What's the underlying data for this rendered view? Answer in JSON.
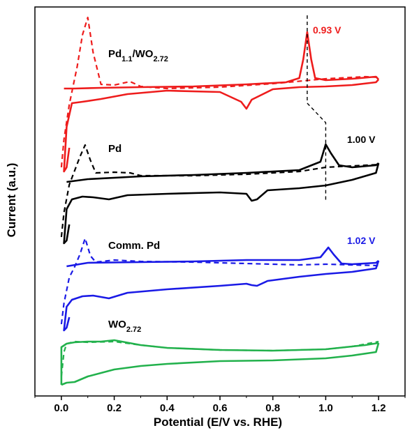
{
  "chart_data": {
    "type": "line",
    "title": "",
    "xlabel": "Potential (E/V vs. RHE)",
    "ylabel": "Current (a.u.)",
    "xlim": [
      -0.1,
      1.3
    ],
    "x_ticks": [
      "0.0",
      "0.2",
      "0.4",
      "0.6",
      "0.8",
      "1.0",
      "1.2"
    ],
    "x_tick_values": [
      0.0,
      0.2,
      0.4,
      0.6,
      0.8,
      1.0,
      1.2
    ],
    "y_ticks_shown": false,
    "legend": "none",
    "grid": false,
    "series": [
      {
        "name": "Pd1.1/WO2.72",
        "label_main": "Pd",
        "label_sub1": "1.1",
        "label_mid": "/WO",
        "label_sub2": "2.72",
        "color": "#ee1c1c",
        "peak_label": "0.93 V",
        "peak_potential": 0.93,
        "solid": {
          "forward": [
            [
              0.01,
              127
            ],
            [
              0.05,
              127
            ],
            [
              0.15,
              126
            ],
            [
              0.3,
              125
            ],
            [
              0.5,
              124
            ],
            [
              0.7,
              121
            ],
            [
              0.85,
              118
            ],
            [
              0.9,
              112
            ],
            [
              0.915,
              85
            ],
            [
              0.93,
              46
            ],
            [
              0.945,
              85
            ],
            [
              0.96,
              112
            ],
            [
              1.0,
              115
            ],
            [
              1.1,
              113
            ],
            [
              1.19,
              110
            ],
            [
              1.2,
              114
            ]
          ],
          "reverse": [
            [
              1.2,
              114
            ],
            [
              1.19,
              118
            ],
            [
              1.1,
              122
            ],
            [
              1.0,
              124
            ],
            [
              0.9,
              125
            ],
            [
              0.8,
              128
            ],
            [
              0.72,
              143
            ],
            [
              0.7,
              156
            ],
            [
              0.68,
              146
            ],
            [
              0.6,
              132
            ],
            [
              0.4,
              130
            ],
            [
              0.25,
              135
            ],
            [
              0.15,
              142
            ],
            [
              0.08,
              146
            ],
            [
              0.04,
              148
            ],
            [
              0.02,
              182
            ],
            [
              0.01,
              246
            ],
            [
              0.02,
              240
            ],
            [
              0.03,
              212
            ]
          ]
        },
        "dashed": [
          [
            0.0,
            240
          ],
          [
            0.01,
            200
          ],
          [
            0.03,
            150
          ],
          [
            0.06,
            95
          ],
          [
            0.08,
            50
          ],
          [
            0.1,
            25
          ],
          [
            0.12,
            75
          ],
          [
            0.15,
            121
          ],
          [
            0.2,
            122
          ],
          [
            0.26,
            117
          ],
          [
            0.3,
            124
          ],
          [
            0.4,
            127
          ],
          [
            0.6,
            125
          ],
          [
            0.8,
            120
          ],
          [
            1.0,
            113
          ],
          [
            1.15,
            110
          ],
          [
            1.2,
            111
          ]
        ]
      },
      {
        "name": "Pd",
        "label_main": "Pd",
        "color": "#000000",
        "peak_label": "1.00 V",
        "peak_potential": 1.0,
        "solid": {
          "forward": [
            [
              0.02,
              261
            ],
            [
              0.1,
              257
            ],
            [
              0.3,
              253
            ],
            [
              0.5,
              251
            ],
            [
              0.7,
              248
            ],
            [
              0.9,
              244
            ],
            [
              0.98,
              232
            ],
            [
              1.0,
              207
            ],
            [
              1.02,
              220
            ],
            [
              1.05,
              237
            ],
            [
              1.1,
              240
            ],
            [
              1.19,
              237
            ],
            [
              1.2,
              234
            ]
          ],
          "reverse": [
            [
              1.2,
              234
            ],
            [
              1.19,
              248
            ],
            [
              1.1,
              258
            ],
            [
              1.0,
              266
            ],
            [
              0.9,
              270
            ],
            [
              0.78,
              273
            ],
            [
              0.74,
              286
            ],
            [
              0.72,
              288
            ],
            [
              0.7,
              278
            ],
            [
              0.6,
              276
            ],
            [
              0.4,
              278
            ],
            [
              0.25,
              280
            ],
            [
              0.18,
              286
            ],
            [
              0.12,
              283
            ],
            [
              0.08,
              282
            ],
            [
              0.04,
              286
            ],
            [
              0.02,
              300
            ],
            [
              0.01,
              349
            ],
            [
              0.02,
              345
            ],
            [
              0.03,
              322
            ]
          ]
        },
        "dashed": [
          [
            0.0,
            340
          ],
          [
            0.01,
            305
          ],
          [
            0.03,
            265
          ],
          [
            0.05,
            245
          ],
          [
            0.07,
            225
          ],
          [
            0.09,
            208
          ],
          [
            0.11,
            230
          ],
          [
            0.13,
            248
          ],
          [
            0.2,
            247
          ],
          [
            0.26,
            248
          ],
          [
            0.3,
            252
          ],
          [
            0.5,
            252
          ],
          [
            0.7,
            250
          ],
          [
            0.9,
            246
          ],
          [
            1.0,
            240
          ],
          [
            1.1,
            238
          ],
          [
            1.2,
            236
          ]
        ]
      },
      {
        "name": "Comm. Pd",
        "label_main": "Comm. Pd",
        "color": "#1a1ae6",
        "peak_label": "1.02 V",
        "peak_potential": 1.02,
        "solid": {
          "forward": [
            [
              0.02,
              382
            ],
            [
              0.1,
              377
            ],
            [
              0.3,
              376
            ],
            [
              0.5,
              375
            ],
            [
              0.7,
              373
            ],
            [
              0.9,
              373
            ],
            [
              0.98,
              369
            ],
            [
              1.01,
              355
            ],
            [
              1.03,
              365
            ],
            [
              1.06,
              378
            ],
            [
              1.1,
              379
            ],
            [
              1.19,
              377
            ],
            [
              1.2,
              374
            ]
          ],
          "reverse": [
            [
              1.2,
              374
            ],
            [
              1.19,
              385
            ],
            [
              1.1,
              390
            ],
            [
              1.0,
              393
            ],
            [
              0.9,
              397
            ],
            [
              0.78,
              403
            ],
            [
              0.74,
              410
            ],
            [
              0.72,
              409
            ],
            [
              0.7,
              407
            ],
            [
              0.6,
              410
            ],
            [
              0.4,
              415
            ],
            [
              0.25,
              420
            ],
            [
              0.18,
              428
            ],
            [
              0.12,
              424
            ],
            [
              0.08,
              425
            ],
            [
              0.04,
              430
            ],
            [
              0.02,
              440
            ],
            [
              0.01,
              474
            ],
            [
              0.02,
              470
            ],
            [
              0.03,
              455
            ]
          ]
        },
        "dashed": [
          [
            0.0,
            465
          ],
          [
            0.01,
            435
          ],
          [
            0.03,
            398
          ],
          [
            0.05,
            383
          ],
          [
            0.07,
            365
          ],
          [
            0.09,
            342
          ],
          [
            0.11,
            367
          ],
          [
            0.13,
            376
          ],
          [
            0.2,
            373
          ],
          [
            0.3,
            375
          ],
          [
            0.5,
            376
          ],
          [
            0.7,
            378
          ],
          [
            0.9,
            380
          ],
          [
            1.0,
            379
          ],
          [
            1.1,
            380
          ],
          [
            1.2,
            381
          ]
        ]
      },
      {
        "name": "WO2.72",
        "label_main": "WO",
        "label_sub1": "2.72",
        "color": "#22b14c",
        "solid": {
          "forward": [
            [
              0.0,
              552
            ],
            [
              0.02,
              549
            ],
            [
              0.05,
              548
            ],
            [
              0.1,
              540
            ],
            [
              0.2,
              530
            ],
            [
              0.3,
              525
            ],
            [
              0.4,
              522
            ],
            [
              0.6,
              518
            ],
            [
              0.8,
              517
            ],
            [
              1.0,
              514
            ],
            [
              1.1,
              510
            ],
            [
              1.19,
              505
            ],
            [
              1.2,
              492
            ]
          ],
          "reverse": [
            [
              1.2,
              492
            ],
            [
              1.15,
              495
            ],
            [
              1.1,
              497
            ],
            [
              1.0,
              501
            ],
            [
              0.8,
              503
            ],
            [
              0.6,
              502
            ],
            [
              0.4,
              499
            ],
            [
              0.3,
              495
            ],
            [
              0.2,
              488
            ],
            [
              0.15,
              490
            ],
            [
              0.1,
              490
            ],
            [
              0.05,
              491
            ],
            [
              0.02,
              493
            ],
            [
              0.0,
              498
            ],
            [
              0.0,
              552
            ]
          ]
        },
        "dashed": [
          [
            0.0,
            540
          ],
          [
            0.01,
            505
          ],
          [
            0.02,
            493
          ],
          [
            0.05,
            490
          ],
          [
            0.1,
            491
          ],
          [
            0.2,
            490
          ],
          [
            0.3,
            495
          ],
          [
            0.4,
            499
          ],
          [
            0.6,
            502
          ],
          [
            0.8,
            503
          ],
          [
            1.0,
            501
          ],
          [
            1.1,
            497
          ],
          [
            1.2,
            490
          ]
        ]
      }
    ]
  },
  "colors": {
    "axis": "#000000",
    "background": "#ffffff"
  }
}
